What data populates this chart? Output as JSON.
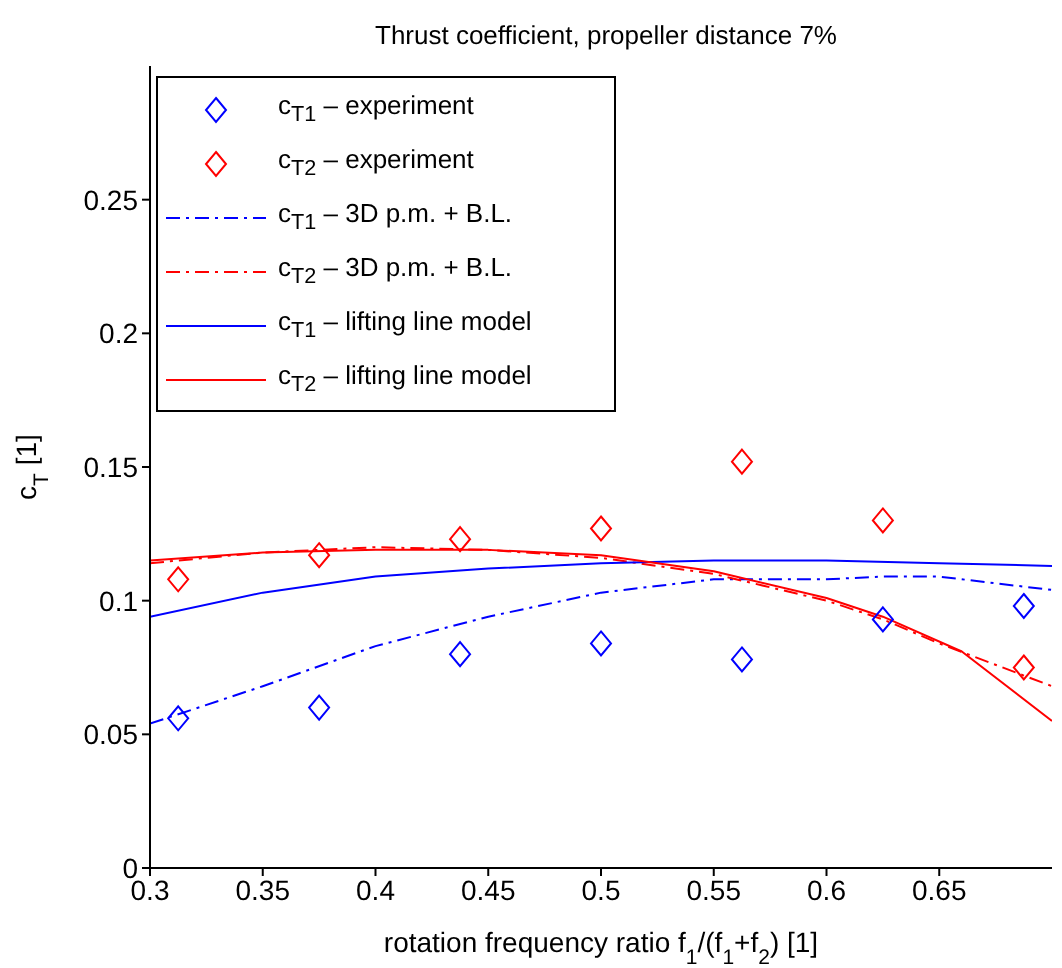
{
  "chart_data": {
    "type": "line",
    "title": "Thrust coefficient, propeller distance 7%",
    "xlabel": "rotation frequency ratio f$_{1}$/(f$_{1}$+f$_{2}$) [1]",
    "ylabel": "c$_{T}$ [1]",
    "xlim": [
      0.3,
      0.7
    ],
    "xticks": [
      0.3,
      0.35,
      0.4,
      0.45,
      0.5,
      0.55,
      0.6,
      0.65
    ],
    "ylim": [
      0,
      0.3
    ],
    "yticks": [
      0,
      0.05,
      0.1,
      0.15,
      0.2,
      0.25
    ],
    "grid": false,
    "legend": "top left",
    "series": [
      {
        "name": "c$_{T1}$ – experiment",
        "type": "scatter",
        "marker": "diamond",
        "color": "#0000ff",
        "x": [
          0.3125,
          0.375,
          0.4375,
          0.5,
          0.5625,
          0.625,
          0.6875
        ],
        "values": [
          0.056,
          0.06,
          0.08,
          0.084,
          0.078,
          0.093,
          0.098
        ]
      },
      {
        "name": "c$_{T2}$ – experiment",
        "type": "scatter",
        "marker": "diamond",
        "color": "#ff0000",
        "x": [
          0.3125,
          0.375,
          0.4375,
          0.5,
          0.5625,
          0.625,
          0.6875
        ],
        "values": [
          0.108,
          0.117,
          0.123,
          0.127,
          0.152,
          0.13,
          0.075
        ]
      },
      {
        "name": "c$_{T1}$ – 3D p.m. + B.L.",
        "type": "line",
        "line_style": "dashed",
        "color": "#0000ff",
        "x": [
          0.3,
          0.35,
          0.4,
          0.45,
          0.5,
          0.55,
          0.6,
          0.625,
          0.65,
          0.7
        ],
        "values": [
          0.054,
          0.068,
          0.083,
          0.094,
          0.103,
          0.108,
          0.108,
          0.109,
          0.109,
          0.104
        ]
      },
      {
        "name": "c$_{T2}$ – 3D p.m. + B.L.",
        "type": "line",
        "line_style": "dashed",
        "color": "#ff0000",
        "x": [
          0.3,
          0.35,
          0.4,
          0.45,
          0.5,
          0.55,
          0.6,
          0.625,
          0.65,
          0.7
        ],
        "values": [
          0.114,
          0.118,
          0.12,
          0.119,
          0.116,
          0.11,
          0.1,
          0.093,
          0.084,
          0.068
        ]
      },
      {
        "name": "c$_{T1}$ – lifting line model",
        "type": "line",
        "line_style": "solid",
        "color": "#0000ff",
        "x": [
          0.3,
          0.35,
          0.4,
          0.45,
          0.5,
          0.55,
          0.6,
          0.65,
          0.7
        ],
        "values": [
          0.094,
          0.103,
          0.109,
          0.112,
          0.114,
          0.115,
          0.115,
          0.114,
          0.113
        ]
      },
      {
        "name": "c$_{T2}$ – lifting line model",
        "type": "line",
        "line_style": "solid",
        "color": "#ff0000",
        "x": [
          0.3,
          0.35,
          0.4,
          0.45,
          0.5,
          0.55,
          0.6,
          0.625,
          0.66,
          0.7
        ],
        "values": [
          0.115,
          0.118,
          0.119,
          0.119,
          0.117,
          0.111,
          0.101,
          0.094,
          0.081,
          0.055
        ]
      }
    ]
  }
}
